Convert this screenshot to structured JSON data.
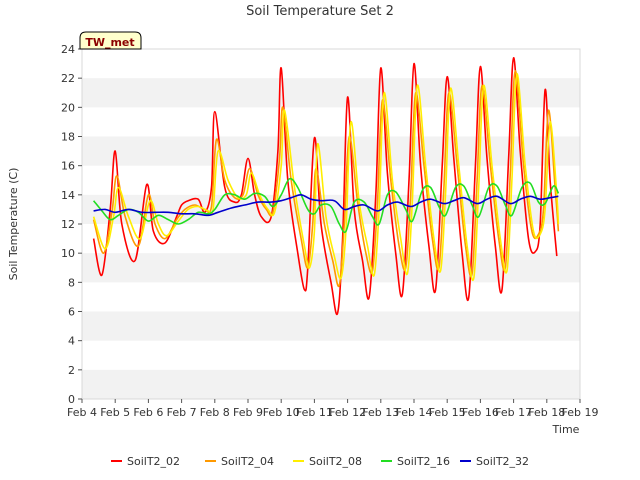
{
  "chart_data": {
    "type": "line",
    "title": "Soil Temperature Set 2",
    "xlabel": "Time",
    "ylabel": "Soil Temperature (C)",
    "station_badge": "TW_met",
    "ylim": [
      0,
      24
    ],
    "y_ticks": [
      0,
      2,
      4,
      6,
      8,
      10,
      12,
      14,
      16,
      18,
      20,
      22,
      24
    ],
    "xlim": [
      4,
      19
    ],
    "x_ticks": [
      {
        "value": 4,
        "label": "Feb 4"
      },
      {
        "value": 5,
        "label": "Feb 5"
      },
      {
        "value": 6,
        "label": "Feb 6"
      },
      {
        "value": 7,
        "label": "Feb 7"
      },
      {
        "value": 8,
        "label": "Feb 8"
      },
      {
        "value": 9,
        "label": "Feb 9"
      },
      {
        "value": 10,
        "label": "Feb 10"
      },
      {
        "value": 11,
        "label": "Feb 11"
      },
      {
        "value": 12,
        "label": "Feb 12"
      },
      {
        "value": 13,
        "label": "Feb 13"
      },
      {
        "value": 14,
        "label": "Feb 14"
      },
      {
        "value": 15,
        "label": "Feb 15"
      },
      {
        "value": 16,
        "label": "Feb 16"
      },
      {
        "value": 17,
        "label": "Feb 17"
      },
      {
        "value": 18,
        "label": "Feb 18"
      },
      {
        "value": 19,
        "label": "Feb 19"
      }
    ],
    "grid": "horizontal bands",
    "legend_position": "bottom",
    "series": [
      {
        "name": "SoilT2_02",
        "color": "#ff0000",
        "points": [
          [
            4.35,
            11.0
          ],
          [
            4.6,
            8.5
          ],
          [
            4.85,
            13.0
          ],
          [
            5.0,
            17.0
          ],
          [
            5.2,
            12.0
          ],
          [
            5.6,
            9.5
          ],
          [
            5.95,
            14.7
          ],
          [
            6.15,
            11.5
          ],
          [
            6.5,
            10.7
          ],
          [
            6.85,
            12.5
          ],
          [
            7.0,
            13.3
          ],
          [
            7.2,
            13.6
          ],
          [
            7.5,
            13.7
          ],
          [
            7.7,
            12.8
          ],
          [
            7.9,
            14.5
          ],
          [
            8.0,
            19.7
          ],
          [
            8.3,
            14.5
          ],
          [
            8.6,
            13.5
          ],
          [
            8.8,
            14.0
          ],
          [
            9.0,
            16.5
          ],
          [
            9.2,
            14.0
          ],
          [
            9.4,
            12.5
          ],
          [
            9.7,
            12.5
          ],
          [
            9.9,
            17.0
          ],
          [
            10.0,
            22.7
          ],
          [
            10.2,
            15.0
          ],
          [
            10.5,
            10.0
          ],
          [
            10.7,
            7.5
          ],
          [
            10.8,
            9.0
          ],
          [
            11.0,
            17.9
          ],
          [
            11.2,
            12.0
          ],
          [
            11.5,
            8.0
          ],
          [
            11.7,
            5.9
          ],
          [
            11.85,
            11.0
          ],
          [
            12.0,
            20.7
          ],
          [
            12.2,
            13.0
          ],
          [
            12.45,
            9.5
          ],
          [
            12.65,
            7.0
          ],
          [
            12.85,
            14.0
          ],
          [
            13.0,
            22.7
          ],
          [
            13.2,
            15.5
          ],
          [
            13.45,
            10.0
          ],
          [
            13.65,
            7.2
          ],
          [
            13.85,
            15.0
          ],
          [
            14.0,
            23.0
          ],
          [
            14.2,
            16.0
          ],
          [
            14.45,
            10.5
          ],
          [
            14.65,
            7.5
          ],
          [
            14.85,
            16.0
          ],
          [
            15.0,
            22.1
          ],
          [
            15.2,
            16.5
          ],
          [
            15.45,
            10.0
          ],
          [
            15.65,
            7.0
          ],
          [
            15.85,
            16.0
          ],
          [
            16.0,
            22.8
          ],
          [
            16.2,
            16.5
          ],
          [
            16.45,
            10.5
          ],
          [
            16.65,
            7.5
          ],
          [
            16.85,
            16.5
          ],
          [
            17.0,
            23.4
          ],
          [
            17.2,
            17.0
          ],
          [
            17.45,
            11.0
          ],
          [
            17.65,
            10.1
          ],
          [
            17.8,
            12.0
          ],
          [
            17.95,
            21.2
          ],
          [
            18.1,
            15.0
          ],
          [
            18.3,
            9.8
          ]
        ]
      },
      {
        "name": "SoilT2_04",
        "color": "#ff9900",
        "points": [
          [
            4.35,
            12.3
          ],
          [
            4.65,
            10.0
          ],
          [
            4.9,
            12.8
          ],
          [
            5.05,
            15.3
          ],
          [
            5.3,
            12.5
          ],
          [
            5.7,
            10.5
          ],
          [
            6.0,
            14.0
          ],
          [
            6.2,
            12.0
          ],
          [
            6.5,
            11.0
          ],
          [
            6.85,
            12.3
          ],
          [
            7.1,
            13.0
          ],
          [
            7.4,
            13.3
          ],
          [
            7.7,
            13.0
          ],
          [
            7.9,
            13.2
          ],
          [
            8.05,
            17.8
          ],
          [
            8.3,
            15.0
          ],
          [
            8.6,
            13.8
          ],
          [
            8.85,
            14.0
          ],
          [
            9.05,
            15.8
          ],
          [
            9.3,
            14.0
          ],
          [
            9.55,
            13.0
          ],
          [
            9.75,
            12.8
          ],
          [
            9.95,
            16.5
          ],
          [
            10.05,
            20.0
          ],
          [
            10.3,
            15.0
          ],
          [
            10.6,
            11.0
          ],
          [
            10.8,
            9.0
          ],
          [
            10.95,
            12.0
          ],
          [
            11.05,
            15.8
          ],
          [
            11.3,
            12.0
          ],
          [
            11.55,
            9.5
          ],
          [
            11.75,
            7.8
          ],
          [
            11.9,
            12.0
          ],
          [
            12.05,
            18.0
          ],
          [
            12.3,
            13.5
          ],
          [
            12.55,
            10.0
          ],
          [
            12.75,
            8.8
          ],
          [
            12.9,
            13.5
          ],
          [
            13.05,
            20.5
          ],
          [
            13.3,
            15.0
          ],
          [
            13.55,
            10.5
          ],
          [
            13.75,
            9.0
          ],
          [
            13.9,
            14.0
          ],
          [
            14.05,
            21.0
          ],
          [
            14.3,
            16.0
          ],
          [
            14.55,
            11.0
          ],
          [
            14.75,
            9.0
          ],
          [
            14.9,
            14.5
          ],
          [
            15.05,
            21.0
          ],
          [
            15.3,
            16.0
          ],
          [
            15.55,
            10.5
          ],
          [
            15.75,
            8.6
          ],
          [
            15.9,
            15.0
          ],
          [
            16.05,
            21.5
          ],
          [
            16.3,
            16.0
          ],
          [
            16.55,
            11.0
          ],
          [
            16.75,
            9.0
          ],
          [
            16.9,
            15.5
          ],
          [
            17.05,
            22.5
          ],
          [
            17.3,
            16.0
          ],
          [
            17.55,
            11.5
          ],
          [
            17.75,
            11.3
          ],
          [
            17.9,
            13.0
          ],
          [
            18.05,
            19.8
          ],
          [
            18.25,
            14.5
          ],
          [
            18.35,
            11.5
          ]
        ]
      },
      {
        "name": "SoilT2_08",
        "color": "#ffee00",
        "points": [
          [
            4.35,
            12.5
          ],
          [
            4.7,
            10.3
          ],
          [
            4.95,
            12.5
          ],
          [
            5.1,
            14.5
          ],
          [
            5.4,
            12.5
          ],
          [
            5.75,
            11.0
          ],
          [
            6.05,
            13.6
          ],
          [
            6.3,
            12.0
          ],
          [
            6.55,
            11.2
          ],
          [
            6.9,
            12.2
          ],
          [
            7.2,
            13.0
          ],
          [
            7.5,
            13.2
          ],
          [
            7.8,
            12.9
          ],
          [
            7.95,
            13.0
          ],
          [
            8.1,
            17.0
          ],
          [
            8.4,
            15.0
          ],
          [
            8.7,
            13.8
          ],
          [
            8.95,
            14.0
          ],
          [
            9.1,
            15.5
          ],
          [
            9.35,
            14.0
          ],
          [
            9.6,
            13.0
          ],
          [
            9.8,
            12.8
          ],
          [
            10.0,
            16.0
          ],
          [
            10.1,
            19.8
          ],
          [
            10.4,
            14.5
          ],
          [
            10.7,
            10.5
          ],
          [
            10.85,
            9.0
          ],
          [
            11.0,
            11.5
          ],
          [
            11.1,
            17.5
          ],
          [
            11.35,
            12.5
          ],
          [
            11.6,
            9.8
          ],
          [
            11.8,
            8.3
          ],
          [
            11.95,
            11.5
          ],
          [
            12.1,
            19.0
          ],
          [
            12.35,
            13.5
          ],
          [
            12.6,
            10.5
          ],
          [
            12.8,
            8.5
          ],
          [
            12.95,
            13.0
          ],
          [
            13.1,
            21.0
          ],
          [
            13.35,
            15.0
          ],
          [
            13.6,
            11.0
          ],
          [
            13.8,
            8.6
          ],
          [
            13.95,
            13.5
          ],
          [
            14.1,
            21.5
          ],
          [
            14.35,
            16.0
          ],
          [
            14.6,
            11.0
          ],
          [
            14.8,
            8.8
          ],
          [
            14.95,
            14.0
          ],
          [
            15.1,
            21.3
          ],
          [
            15.35,
            16.0
          ],
          [
            15.6,
            10.5
          ],
          [
            15.8,
            8.3
          ],
          [
            15.95,
            14.5
          ],
          [
            16.1,
            21.5
          ],
          [
            16.35,
            16.0
          ],
          [
            16.6,
            11.0
          ],
          [
            16.8,
            8.8
          ],
          [
            16.95,
            15.0
          ],
          [
            17.1,
            22.3
          ],
          [
            17.35,
            16.0
          ],
          [
            17.6,
            11.5
          ],
          [
            17.8,
            11.3
          ],
          [
            17.95,
            13.0
          ],
          [
            18.1,
            19.0
          ],
          [
            18.3,
            14.0
          ],
          [
            18.35,
            12.0
          ]
        ]
      },
      {
        "name": "SoilT2_16",
        "color": "#22dd22",
        "points": [
          [
            4.35,
            13.6
          ],
          [
            4.6,
            12.9
          ],
          [
            4.85,
            12.3
          ],
          [
            5.1,
            12.6
          ],
          [
            5.4,
            13.0
          ],
          [
            5.7,
            12.8
          ],
          [
            6.0,
            12.2
          ],
          [
            6.3,
            12.6
          ],
          [
            6.6,
            12.3
          ],
          [
            6.9,
            12.0
          ],
          [
            7.2,
            12.3
          ],
          [
            7.5,
            12.8
          ],
          [
            7.8,
            12.7
          ],
          [
            8.0,
            13.0
          ],
          [
            8.3,
            14.0
          ],
          [
            8.6,
            14.0
          ],
          [
            8.9,
            13.7
          ],
          [
            9.2,
            14.1
          ],
          [
            9.5,
            13.9
          ],
          [
            9.75,
            13.2
          ],
          [
            10.0,
            14.0
          ],
          [
            10.25,
            15.1
          ],
          [
            10.5,
            14.5
          ],
          [
            10.8,
            13.0
          ],
          [
            11.0,
            12.7
          ],
          [
            11.2,
            13.3
          ],
          [
            11.5,
            13.2
          ],
          [
            11.75,
            12.0
          ],
          [
            11.95,
            11.5
          ],
          [
            12.2,
            13.5
          ],
          [
            12.5,
            13.5
          ],
          [
            12.75,
            12.5
          ],
          [
            12.95,
            12.0
          ],
          [
            13.2,
            14.0
          ],
          [
            13.45,
            14.2
          ],
          [
            13.75,
            13.0
          ],
          [
            13.95,
            12.2
          ],
          [
            14.25,
            14.3
          ],
          [
            14.5,
            14.5
          ],
          [
            14.75,
            13.2
          ],
          [
            14.95,
            12.6
          ],
          [
            15.25,
            14.5
          ],
          [
            15.5,
            14.6
          ],
          [
            15.75,
            13.3
          ],
          [
            15.95,
            12.5
          ],
          [
            16.25,
            14.5
          ],
          [
            16.5,
            14.6
          ],
          [
            16.75,
            13.3
          ],
          [
            16.95,
            12.6
          ],
          [
            17.25,
            14.5
          ],
          [
            17.5,
            14.8
          ],
          [
            17.75,
            13.5
          ],
          [
            17.95,
            13.4
          ],
          [
            18.2,
            14.6
          ],
          [
            18.35,
            14.1
          ]
        ]
      },
      {
        "name": "SoilT2_32",
        "color": "#0000cc",
        "points": [
          [
            4.35,
            12.9
          ],
          [
            4.7,
            13.0
          ],
          [
            5.0,
            12.8
          ],
          [
            5.4,
            13.0
          ],
          [
            5.8,
            12.8
          ],
          [
            6.2,
            12.8
          ],
          [
            6.6,
            12.8
          ],
          [
            7.0,
            12.7
          ],
          [
            7.4,
            12.7
          ],
          [
            7.8,
            12.6
          ],
          [
            8.1,
            12.8
          ],
          [
            8.5,
            13.1
          ],
          [
            8.9,
            13.3
          ],
          [
            9.3,
            13.5
          ],
          [
            9.7,
            13.5
          ],
          [
            10.0,
            13.6
          ],
          [
            10.3,
            13.8
          ],
          [
            10.6,
            14.0
          ],
          [
            10.9,
            13.7
          ],
          [
            11.2,
            13.6
          ],
          [
            11.6,
            13.6
          ],
          [
            11.9,
            13.0
          ],
          [
            12.2,
            13.2
          ],
          [
            12.5,
            13.3
          ],
          [
            12.9,
            12.9
          ],
          [
            13.2,
            13.3
          ],
          [
            13.5,
            13.5
          ],
          [
            13.9,
            13.2
          ],
          [
            14.2,
            13.5
          ],
          [
            14.5,
            13.7
          ],
          [
            14.9,
            13.4
          ],
          [
            15.2,
            13.6
          ],
          [
            15.5,
            13.8
          ],
          [
            15.9,
            13.4
          ],
          [
            16.2,
            13.7
          ],
          [
            16.5,
            13.9
          ],
          [
            16.9,
            13.4
          ],
          [
            17.2,
            13.7
          ],
          [
            17.5,
            13.9
          ],
          [
            17.8,
            13.7
          ],
          [
            18.1,
            13.8
          ],
          [
            18.35,
            13.9
          ]
        ]
      }
    ]
  }
}
